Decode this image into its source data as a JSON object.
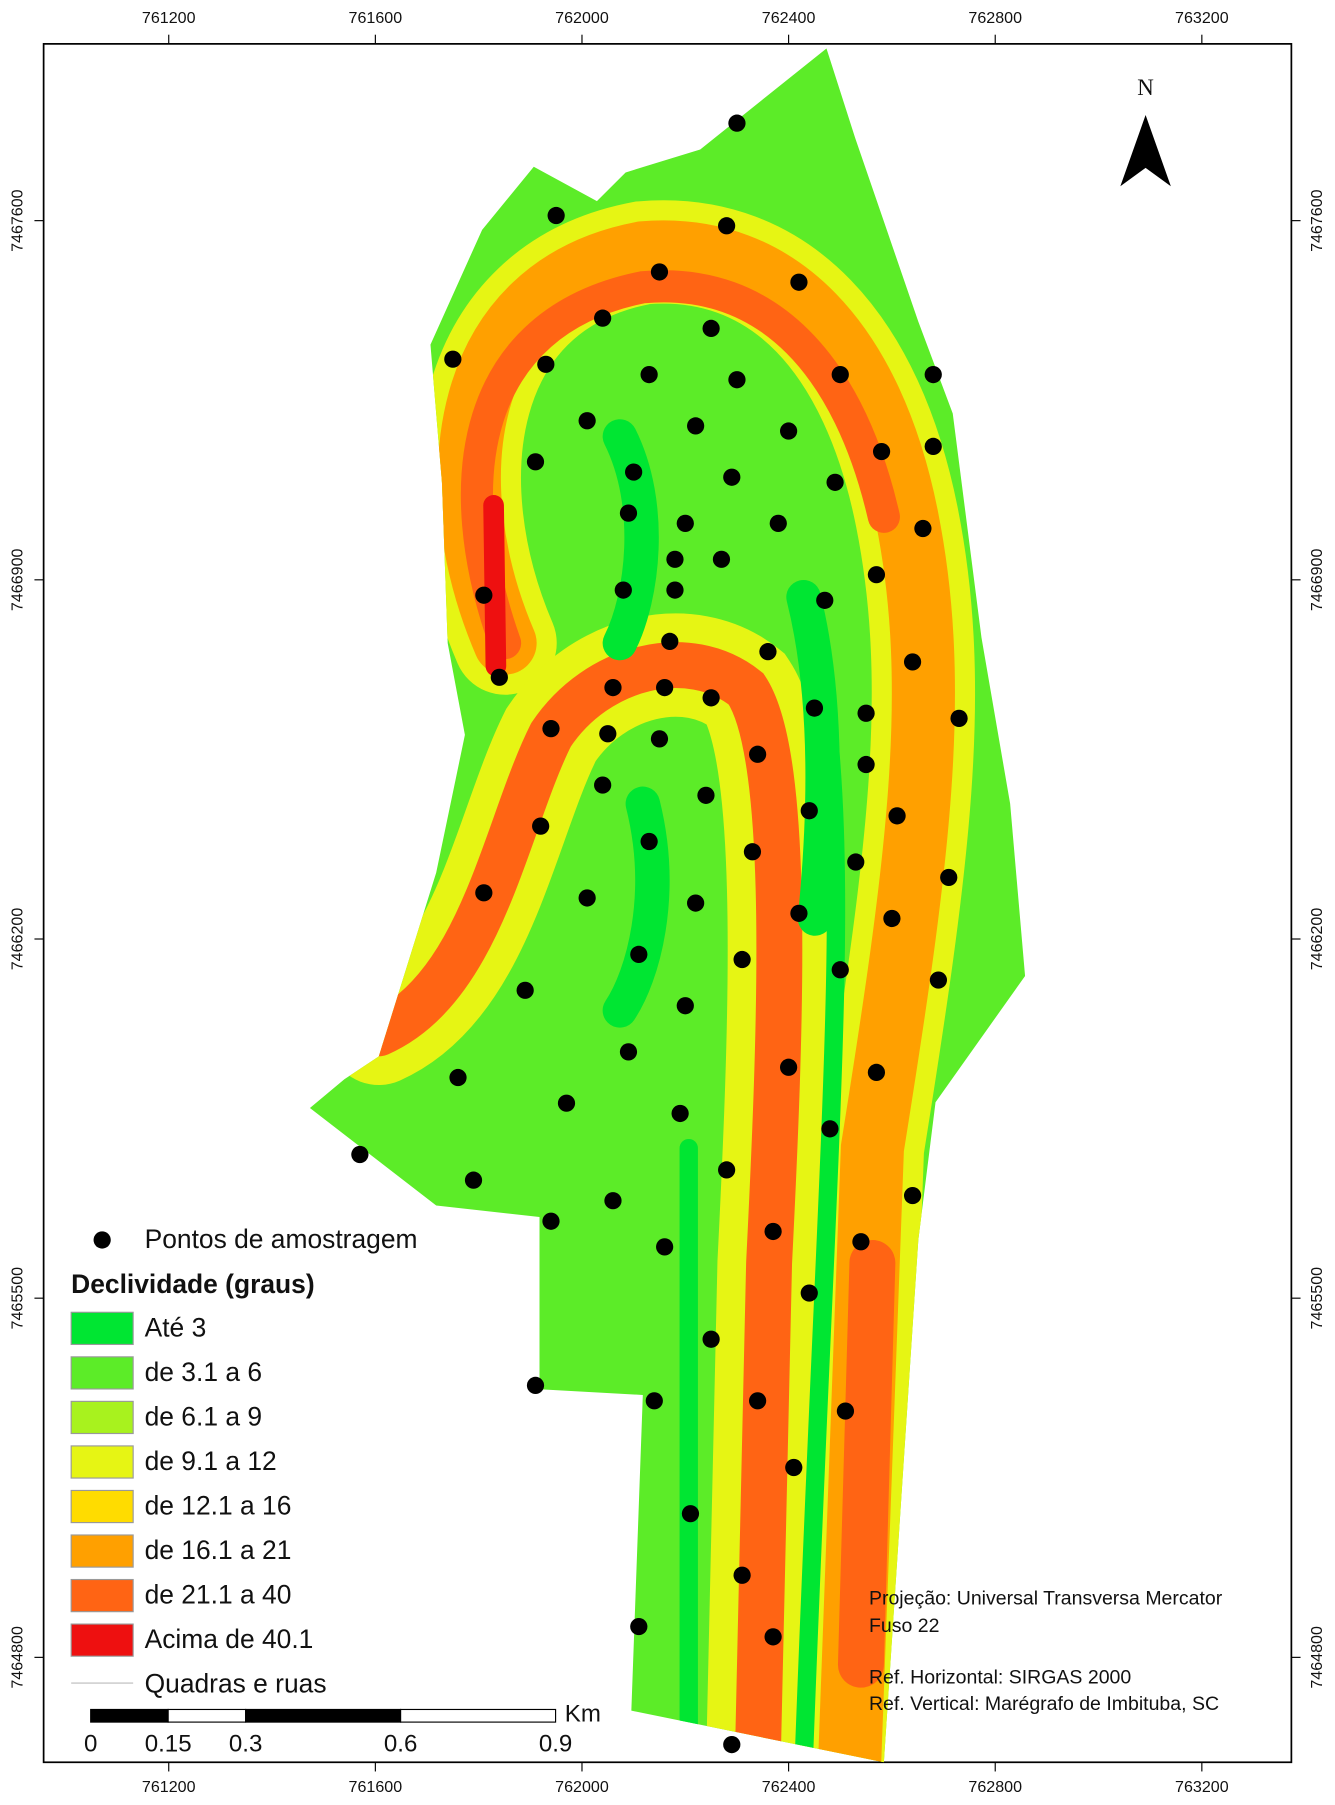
{
  "map": {
    "x_ticks": [
      761200,
      761600,
      762000,
      762400,
      762800,
      763200
    ],
    "y_ticks": [
      7467600,
      7466900,
      7466200,
      7465500,
      7464800
    ],
    "north": "N",
    "legend": {
      "points_label": "Pontos de amostragem",
      "title": "Declividade (graus)",
      "classes": [
        {
          "label": "Até 3",
          "color": "#00e632"
        },
        {
          "label": "de 3.1 a 6",
          "color": "#5cec28"
        },
        {
          "label": "de 6.1 a 9",
          "color": "#a8f21e"
        },
        {
          "label": "de 9.1 a 12",
          "color": "#e6f514"
        },
        {
          "label": "de 12.1 a 16",
          "color": "#ffdc00"
        },
        {
          "label": "de 16.1 a 21",
          "color": "#ffa000"
        },
        {
          "label": "de 21.1 a 40",
          "color": "#ff6414"
        },
        {
          "label": "Acima de 40.1",
          "color": "#ee1010"
        }
      ],
      "streets_label": "Quadras e ruas"
    },
    "scale_bar": {
      "labels": [
        0,
        0.15,
        0.3,
        0.6,
        0.9
      ],
      "unit": "Km"
    },
    "notes": [
      "Projeção: Universal Transversa Mercator",
      "Fuso 22",
      "Ref. Horizontal: SIRGAS 2000",
      "Ref. Vertical: Marégrafo de Imbituba, SC"
    ],
    "sample_points": [
      [
        762300,
        7467790
      ],
      [
        761950,
        7467610
      ],
      [
        762280,
        7467590
      ],
      [
        762150,
        7467500
      ],
      [
        762420,
        7467480
      ],
      [
        762040,
        7467410
      ],
      [
        762250,
        7467390
      ],
      [
        761750,
        7467330
      ],
      [
        761930,
        7467320
      ],
      [
        762130,
        7467300
      ],
      [
        762300,
        7467290
      ],
      [
        762500,
        7467300
      ],
      [
        762680,
        7467300
      ],
      [
        762010,
        7467210
      ],
      [
        762220,
        7467200
      ],
      [
        762400,
        7467190
      ],
      [
        762680,
        7467160
      ],
      [
        762580,
        7467150
      ],
      [
        761910,
        7467130
      ],
      [
        762100,
        7467110
      ],
      [
        762290,
        7467100
      ],
      [
        762490,
        7467090
      ],
      [
        762090,
        7467030
      ],
      [
        762200,
        7467010
      ],
      [
        762380,
        7467010
      ],
      [
        762660,
        7467000
      ],
      [
        762180,
        7466940
      ],
      [
        762270,
        7466940
      ],
      [
        762570,
        7466910
      ],
      [
        761810,
        7466870
      ],
      [
        762080,
        7466880
      ],
      [
        762180,
        7466880
      ],
      [
        762470,
        7466860
      ],
      [
        762170,
        7466780
      ],
      [
        762360,
        7466760
      ],
      [
        762640,
        7466740
      ],
      [
        761840,
        7466710
      ],
      [
        762060,
        7466690
      ],
      [
        762160,
        7466690
      ],
      [
        762250,
        7466670
      ],
      [
        762450,
        7466650
      ],
      [
        762550,
        7466640
      ],
      [
        762730,
        7466630
      ],
      [
        761940,
        7466610
      ],
      [
        762050,
        7466600
      ],
      [
        762150,
        7466590
      ],
      [
        762340,
        7466560
      ],
      [
        762550,
        7466540
      ],
      [
        762040,
        7466500
      ],
      [
        762240,
        7466480
      ],
      [
        762440,
        7466450
      ],
      [
        762610,
        7466440
      ],
      [
        761920,
        7466420
      ],
      [
        762130,
        7466390
      ],
      [
        762330,
        7466370
      ],
      [
        762530,
        7466350
      ],
      [
        762710,
        7466320
      ],
      [
        761810,
        7466290
      ],
      [
        762010,
        7466280
      ],
      [
        762220,
        7466270
      ],
      [
        762420,
        7466250
      ],
      [
        762600,
        7466240
      ],
      [
        762110,
        7466170
      ],
      [
        762310,
        7466160
      ],
      [
        762500,
        7466140
      ],
      [
        762690,
        7466120
      ],
      [
        761890,
        7466100
      ],
      [
        762200,
        7466070
      ],
      [
        762090,
        7465980
      ],
      [
        762400,
        7465950
      ],
      [
        762570,
        7465940
      ],
      [
        761760,
        7465930
      ],
      [
        761970,
        7465880
      ],
      [
        762190,
        7465860
      ],
      [
        762480,
        7465830
      ],
      [
        761570,
        7465780
      ],
      [
        761790,
        7465730
      ],
      [
        762280,
        7465750
      ],
      [
        762060,
        7465690
      ],
      [
        762640,
        7465700
      ],
      [
        761940,
        7465650
      ],
      [
        762370,
        7465630
      ],
      [
        762160,
        7465600
      ],
      [
        762540,
        7465610
      ],
      [
        762440,
        7465510
      ],
      [
        762250,
        7465420
      ],
      [
        761910,
        7465330
      ],
      [
        762140,
        7465300
      ],
      [
        762340,
        7465300
      ],
      [
        762510,
        7465280
      ],
      [
        762410,
        7465170
      ],
      [
        762210,
        7465080
      ],
      [
        762310,
        7464960
      ],
      [
        762110,
        7464860
      ],
      [
        762370,
        7464840
      ],
      [
        762290,
        7464630
      ]
    ]
  }
}
